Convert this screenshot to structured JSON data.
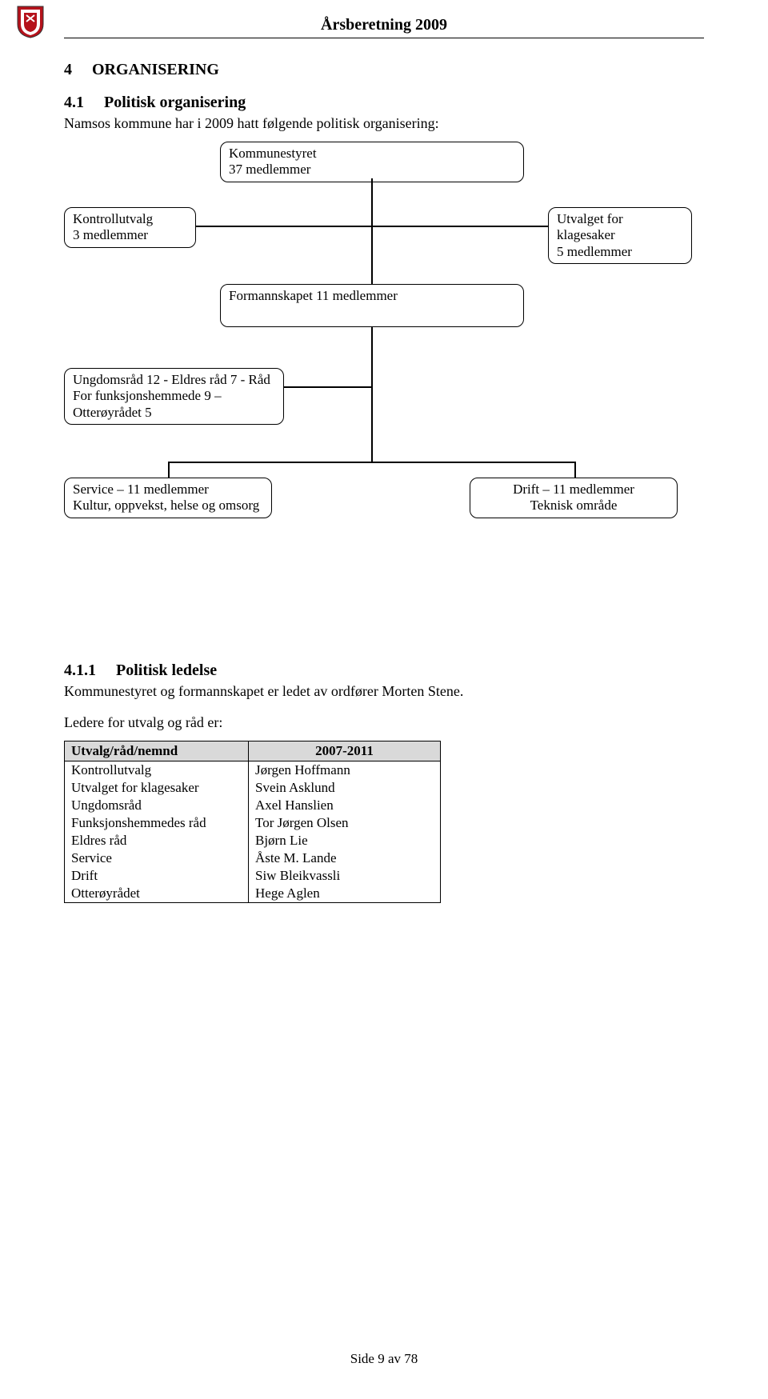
{
  "header": {
    "title": "Årsberetning 2009",
    "shield_colors": {
      "red": "#b5121b",
      "white": "#ffffff",
      "border": "#333333"
    }
  },
  "section": {
    "number": "4",
    "title": "ORGANISERING"
  },
  "subsection": {
    "number": "4.1",
    "title": "Politisk organisering",
    "intro": "Namsos kommune har i 2009 hatt følgende politisk organisering:"
  },
  "org_chart": {
    "nodes": {
      "kommunestyret": {
        "line1": "Kommunestyret",
        "line2": "37 medlemmer"
      },
      "kontrollutvalg": {
        "line1": "Kontrollutvalg",
        "line2": "3 medlemmer"
      },
      "klagesaker": {
        "line1": "Utvalget for klagesaker",
        "line2": "5 medlemmer"
      },
      "formannskapet": {
        "line1": "Formannskapet 11 medlemmer"
      },
      "ungdomsrad": {
        "line1": "Ungdomsråd 12 - Eldres råd 7 - Råd",
        "line2": "For funksjonshemmede 9 – Otterøyrådet 5"
      },
      "service": {
        "line1": "Service – 11 medlemmer",
        "line2": "Kultur, oppvekst, helse og omsorg"
      },
      "drift": {
        "line1": "Drift – 11 medlemmer",
        "line2": "Teknisk område"
      }
    },
    "line_color": "#000000"
  },
  "politisk_ledelse": {
    "number": "4.1.1",
    "title": "Politisk ledelse",
    "text": "Kommunestyret og formannskapet er ledet av ordfører Morten Stene.",
    "leaders_intro": "Ledere for utvalg og råd er:"
  },
  "leaders_table": {
    "header": {
      "col1": "Utvalg/råd/nemnd",
      "col2": "2007-2011"
    },
    "rows": [
      {
        "utvalg": "Kontrollutvalg",
        "leder": "Jørgen Hoffmann"
      },
      {
        "utvalg": "Utvalget for klagesaker",
        "leder": "Svein Asklund"
      },
      {
        "utvalg": "Ungdomsråd",
        "leder": "Axel Hanslien"
      },
      {
        "utvalg": "Funksjonshemmedes råd",
        "leder": "Tor Jørgen Olsen"
      },
      {
        "utvalg": "Eldres råd",
        "leder": "Bjørn Lie"
      },
      {
        "utvalg": "Service",
        "leder": "Åste M. Lande"
      },
      {
        "utvalg": "Drift",
        "leder": "Siw Bleikvassli"
      },
      {
        "utvalg": "Otterøyrådet",
        "leder": "Hege Aglen"
      }
    ],
    "col_widths": {
      "col1": 230,
      "col2": 240
    },
    "header_bg": "#d9d9d9"
  },
  "footer": {
    "text": "Side 9 av 78"
  }
}
